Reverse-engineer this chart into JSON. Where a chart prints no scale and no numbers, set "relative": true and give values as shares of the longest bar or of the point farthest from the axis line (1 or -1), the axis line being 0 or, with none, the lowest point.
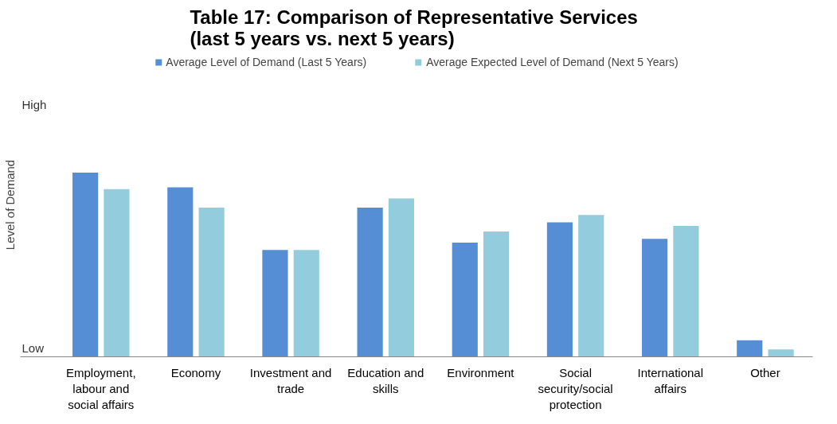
{
  "chart_data": {
    "type": "bar",
    "title": "Table 17:  Comparison of Representative Services\n(last 5 years vs. next 5 years)",
    "ylabel": "Level of Demand",
    "relative": true,
    "categories": [
      "Employment, labour and social affairs",
      "Economy",
      "Investment and trade",
      "Education and skills",
      "Environment",
      "Social security/social protection",
      "International affairs",
      "Other"
    ],
    "series": [
      {
        "name": "Average Level of Demand (Last 5 Years)",
        "color": "#558ed5",
        "values": [
          1,
          0.92,
          0.58,
          0.81,
          0.62,
          0.73,
          0.64,
          0.09
        ]
      },
      {
        "name": "Average Expected Level of Demand (Next 5 Years)",
        "color": "#93cddd",
        "values": [
          0.91,
          0.81,
          0.58,
          0.86,
          0.68,
          0.77,
          0.71,
          0.04
        ]
      }
    ],
    "annotations": [
      "High",
      "Low"
    ],
    "legend": "top"
  }
}
